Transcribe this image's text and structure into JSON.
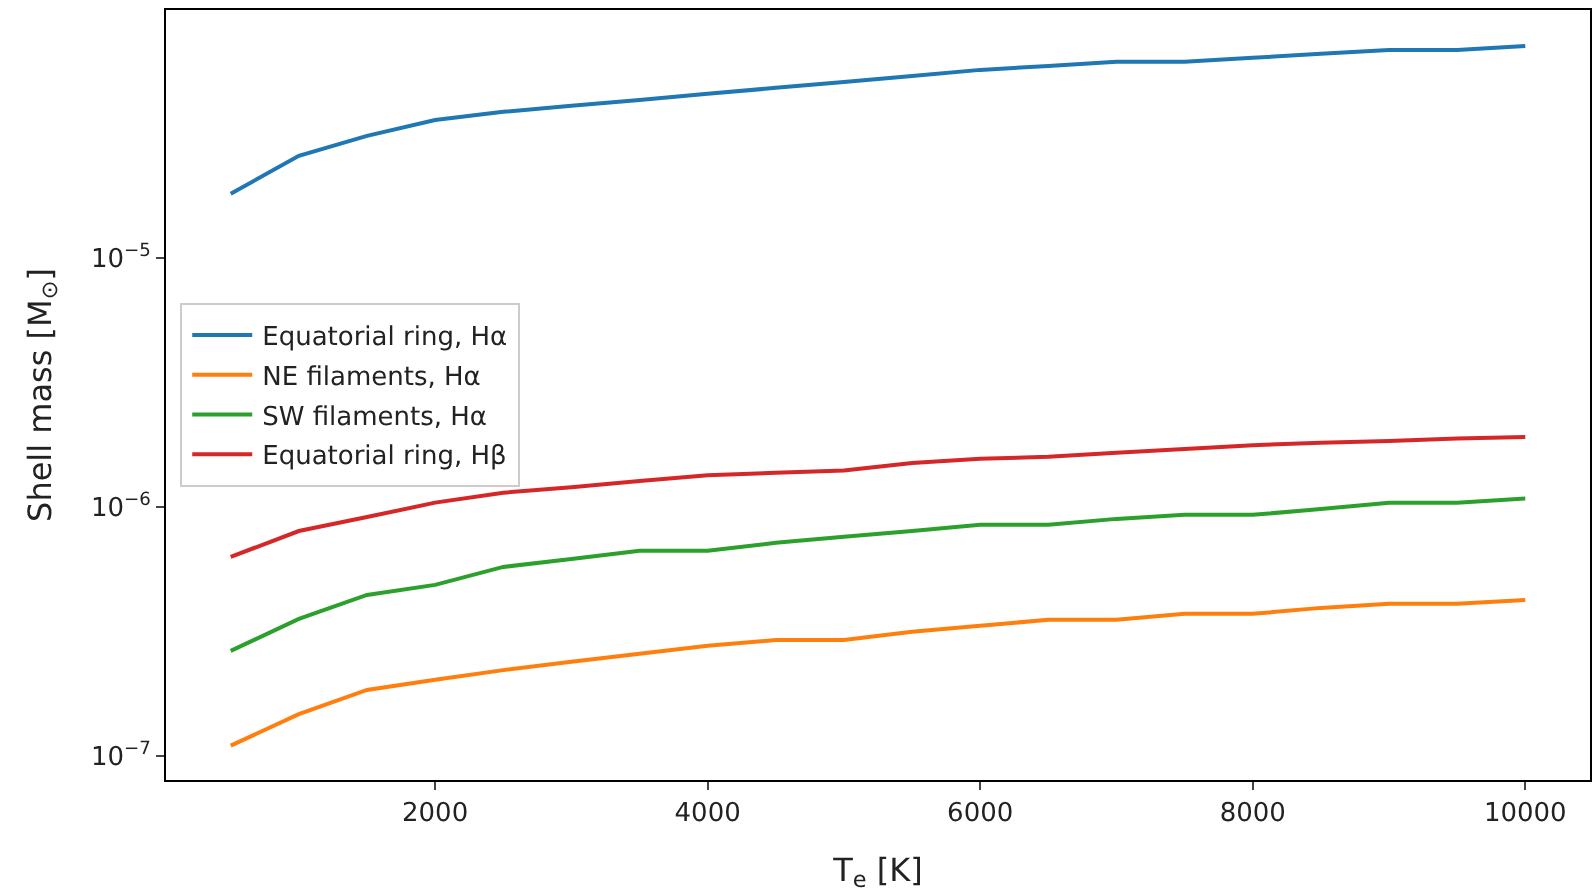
{
  "chart_data": {
    "type": "line",
    "xlabel": "T$_{e}$ [K]",
    "ylabel": "Shell mass [M$_{⊙}$]",
    "x": [
      500,
      1000,
      1500,
      2000,
      2500,
      3000,
      3500,
      4000,
      4500,
      5000,
      5500,
      6000,
      6500,
      7000,
      7500,
      8000,
      8500,
      9000,
      9500,
      10000
    ],
    "log": "y",
    "xlim": [
      25,
      10475
    ],
    "ylim": [
      8e-08,
      9.9e-05
    ],
    "xticks": [
      2000,
      4000,
      6000,
      8000,
      10000
    ],
    "yticks": [
      {
        "value": 1e-07,
        "label": "10$^{−7}$"
      },
      {
        "value": 1e-06,
        "label": "10$^{−6}$"
      },
      {
        "value": 1e-05,
        "label": "10$^{−5}$"
      }
    ],
    "legend": "left",
    "marker": "none",
    "line_style": "solid",
    "series": [
      {
        "name": "Equatorial ring, Hα",
        "color": "#1f77b4",
        "values": [
          1.81e-05,
          2.57e-05,
          3.09e-05,
          3.58e-05,
          3.86e-05,
          4.08e-05,
          4.31e-05,
          4.56e-05,
          4.82e-05,
          5.09e-05,
          5.38e-05,
          5.69e-05,
          5.9e-05,
          6.13e-05,
          6.13e-05,
          6.36e-05,
          6.6e-05,
          6.84e-05,
          6.84e-05,
          7.1e-05
        ]
      },
      {
        "name": "NE filaments, Hα",
        "color": "#ff7f0e",
        "values": [
          1.1e-07,
          1.47e-07,
          1.84e-07,
          2.02e-07,
          2.21e-07,
          2.39e-07,
          2.57e-07,
          2.77e-07,
          2.92e-07,
          2.92e-07,
          3.15e-07,
          3.33e-07,
          3.52e-07,
          3.52e-07,
          3.72e-07,
          3.72e-07,
          3.93e-07,
          4.08e-07,
          4.08e-07,
          4.23e-07
        ]
      },
      {
        "name": "SW filaments, Hα",
        "color": "#2ca02c",
        "values": [
          2.64e-07,
          3.55e-07,
          4.43e-07,
          4.86e-07,
          5.74e-07,
          6.18e-07,
          6.66e-07,
          6.66e-07,
          7.17e-07,
          7.58e-07,
          8e-07,
          8.47e-07,
          8.47e-07,
          8.95e-07,
          9.29e-07,
          9.29e-07,
          9.8e-07,
          1.04e-06,
          1.04e-06,
          1.08e-06
        ]
      },
      {
        "name": "Equatorial ring, Hβ",
        "color": "#d62728",
        "values": [
          6.3e-07,
          8e-07,
          9.1e-07,
          1.04e-06,
          1.14e-06,
          1.2e-06,
          1.27e-06,
          1.34e-06,
          1.37e-06,
          1.4e-06,
          1.5e-06,
          1.56e-06,
          1.59e-06,
          1.65e-06,
          1.71e-06,
          1.77e-06,
          1.81e-06,
          1.84e-06,
          1.88e-06,
          1.91e-06
        ]
      }
    ]
  }
}
